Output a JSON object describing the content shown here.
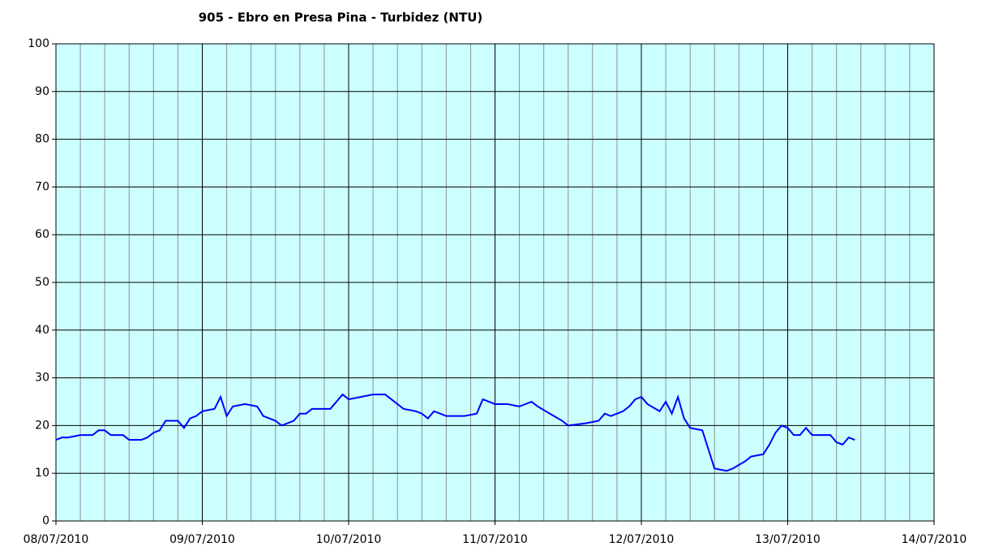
{
  "chart_data": {
    "type": "line",
    "title": "905 - Ebro en Presa Pina - Turbidez (NTU)",
    "x": [
      "2010-07-08T00:00",
      "2010-07-08T01:00",
      "2010-07-08T02:00",
      "2010-07-08T04:00",
      "2010-07-08T06:00",
      "2010-07-08T07:00",
      "2010-07-08T08:00",
      "2010-07-08T09:00",
      "2010-07-08T11:00",
      "2010-07-08T12:00",
      "2010-07-08T14:00",
      "2010-07-08T15:00",
      "2010-07-08T16:00",
      "2010-07-08T17:00",
      "2010-07-08T18:00",
      "2010-07-08T20:00",
      "2010-07-08T21:00",
      "2010-07-08T22:00",
      "2010-07-08T23:00",
      "2010-07-09T00:00",
      "2010-07-09T02:00",
      "2010-07-09T03:00",
      "2010-07-09T04:00",
      "2010-07-09T05:00",
      "2010-07-09T07:00",
      "2010-07-09T09:00",
      "2010-07-09T10:00",
      "2010-07-09T12:00",
      "2010-07-09T13:00",
      "2010-07-09T15:00",
      "2010-07-09T16:00",
      "2010-07-09T17:00",
      "2010-07-09T18:00",
      "2010-07-09T21:00",
      "2010-07-09T22:00",
      "2010-07-09T23:00",
      "2010-07-10T00:00",
      "2010-07-10T02:00",
      "2010-07-10T04:00",
      "2010-07-10T06:00",
      "2010-07-10T07:00",
      "2010-07-10T09:00",
      "2010-07-10T11:00",
      "2010-07-10T12:00",
      "2010-07-10T13:00",
      "2010-07-10T14:00",
      "2010-07-10T16:00",
      "2010-07-10T19:00",
      "2010-07-10T21:00",
      "2010-07-10T22:00",
      "2010-07-11T00:00",
      "2010-07-11T02:00",
      "2010-07-11T04:00",
      "2010-07-11T06:00",
      "2010-07-11T07:00",
      "2010-07-11T09:00",
      "2010-07-11T11:00",
      "2010-07-11T12:00",
      "2010-07-11T15:00",
      "2010-07-11T17:00",
      "2010-07-11T18:00",
      "2010-07-11T19:00",
      "2010-07-11T21:00",
      "2010-07-11T22:00",
      "2010-07-11T23:00",
      "2010-07-12T00:00",
      "2010-07-12T01:00",
      "2010-07-12T03:00",
      "2010-07-12T04:00",
      "2010-07-12T05:00",
      "2010-07-12T06:00",
      "2010-07-12T07:00",
      "2010-07-12T08:00",
      "2010-07-12T10:00",
      "2010-07-12T11:00",
      "2010-07-12T12:00",
      "2010-07-12T14:00",
      "2010-07-12T15:00",
      "2010-07-12T17:00",
      "2010-07-12T18:00",
      "2010-07-12T20:00",
      "2010-07-12T21:00",
      "2010-07-12T22:00",
      "2010-07-12T23:00",
      "2010-07-13T00:00",
      "2010-07-13T01:00",
      "2010-07-13T02:00",
      "2010-07-13T03:00",
      "2010-07-13T04:00",
      "2010-07-13T07:00",
      "2010-07-13T08:00",
      "2010-07-13T09:00",
      "2010-07-13T10:00",
      "2010-07-13T11:00"
    ],
    "series": [
      {
        "name": "Turbidez (NTU)",
        "color": "#0000ff",
        "values": [
          17,
          17.5,
          17.5,
          18,
          18,
          19,
          19,
          18,
          18,
          17,
          17,
          17.5,
          18.5,
          19,
          21,
          21,
          19.5,
          21.5,
          22,
          23,
          23.5,
          26,
          22,
          24,
          24.5,
          24,
          22,
          21,
          20,
          21,
          22.5,
          22.5,
          23.5,
          23.5,
          25,
          26.5,
          25.5,
          26,
          26.5,
          26.5,
          25.5,
          23.5,
          23,
          22.5,
          21.5,
          23,
          22,
          22,
          22.5,
          25.5,
          24.5,
          24.5,
          24,
          25,
          24,
          22.5,
          21,
          20,
          20.5,
          21,
          22.5,
          22,
          23,
          24,
          25.5,
          26,
          24.5,
          23,
          25,
          22.5,
          26,
          21.5,
          19.5,
          19,
          15,
          11,
          10.5,
          11,
          12.5,
          13.5,
          14,
          16,
          18.5,
          20,
          19.5,
          18,
          18,
          19.5,
          18,
          18,
          16.5,
          16,
          17.5,
          17
        ]
      }
    ],
    "xlim": [
      "2010-07-08T00:00",
      "2010-07-14T00:00"
    ],
    "xticks": [
      {
        "value": "2010-07-08T00:00",
        "label": "08/07/2010"
      },
      {
        "value": "2010-07-09T00:00",
        "label": "09/07/2010"
      },
      {
        "value": "2010-07-10T00:00",
        "label": "10/07/2010"
      },
      {
        "value": "2010-07-11T00:00",
        "label": "11/07/2010"
      },
      {
        "value": "2010-07-12T00:00",
        "label": "12/07/2010"
      },
      {
        "value": "2010-07-13T00:00",
        "label": "13/07/2010"
      },
      {
        "value": "2010-07-14T00:00",
        "label": "14/07/2010"
      }
    ],
    "xminorticks": [
      "2010-07-08T04:00",
      "2010-07-08T08:00",
      "2010-07-08T12:00",
      "2010-07-08T16:00",
      "2010-07-08T20:00",
      "2010-07-09T04:00",
      "2010-07-09T08:00",
      "2010-07-09T12:00",
      "2010-07-09T16:00",
      "2010-07-09T20:00",
      "2010-07-10T04:00",
      "2010-07-10T08:00",
      "2010-07-10T12:00",
      "2010-07-10T16:00",
      "2010-07-10T20:00",
      "2010-07-11T04:00",
      "2010-07-11T08:00",
      "2010-07-11T12:00",
      "2010-07-11T16:00",
      "2010-07-11T20:00",
      "2010-07-12T04:00",
      "2010-07-12T08:00",
      "2010-07-12T12:00",
      "2010-07-12T16:00",
      "2010-07-12T20:00",
      "2010-07-13T04:00",
      "2010-07-13T08:00",
      "2010-07-13T12:00",
      "2010-07-13T16:00",
      "2010-07-13T20:00"
    ],
    "ylim": [
      0,
      100
    ],
    "yticks": [
      0,
      10,
      20,
      30,
      40,
      50,
      60,
      70,
      80,
      90,
      100
    ],
    "grid": true,
    "plot_background": "#ccffff"
  }
}
